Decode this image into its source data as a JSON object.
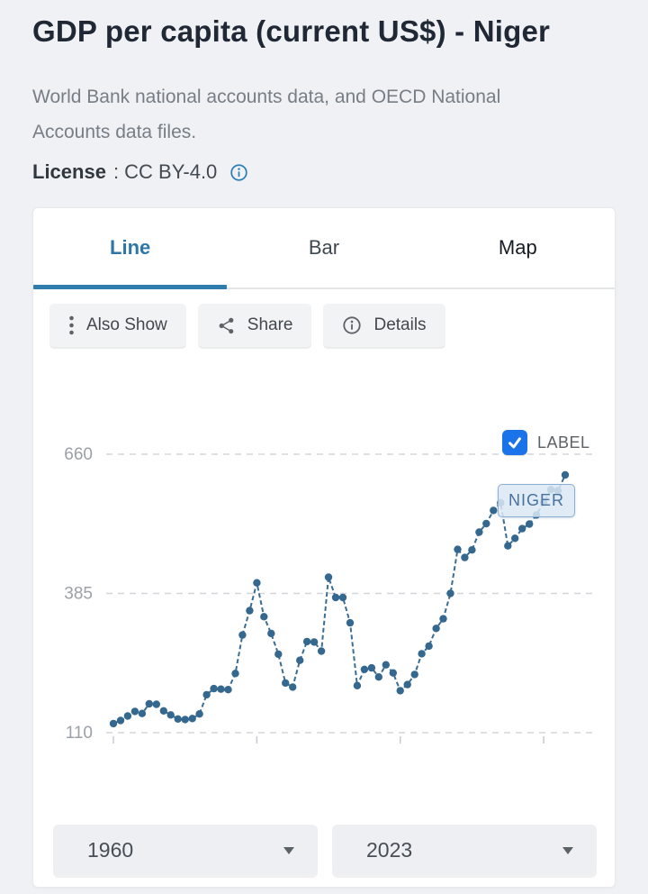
{
  "page": {
    "title": "GDP per capita (current US$) - Niger",
    "source_description": "World Bank national accounts data, and OECD National Accounts data files.",
    "license_label": "License",
    "license_text": ": CC BY-4.0"
  },
  "tabs": [
    {
      "label": "Line",
      "active": true
    },
    {
      "label": "Bar",
      "active": false
    },
    {
      "label": "Map",
      "active": false
    }
  ],
  "toolbar": [
    {
      "label": "Also Show",
      "icon": "kebab-menu-icon"
    },
    {
      "label": "Share",
      "icon": "share-icon"
    },
    {
      "label": "Details",
      "icon": "info-circle-icon"
    }
  ],
  "chart": {
    "legend_checkbox_label": "LABEL",
    "legend_checkbox_checked": true,
    "series_annotation": "NIGER"
  },
  "range_selectors": {
    "start_year": "1960",
    "end_year": "2023"
  },
  "icons": {
    "license": "info-circle-icon",
    "checkbox": "checkmark-icon",
    "dropdowns": "caret-down-icon"
  },
  "colors": {
    "accent_tab": "#2e7dad",
    "line_series": "#3a6d93",
    "dot_series": "#35688f",
    "checkbox_blue": "#1a73e8",
    "gridline": "#d3d6da",
    "page_background": "#eff1f4",
    "annotation_fill": "#dbe8f5",
    "annotation_border": "#8cb0d3"
  },
  "chart_data": {
    "type": "line",
    "title": "GDP per capita (current US$) - Niger",
    "series_name": "Niger",
    "x": [
      1960,
      1961,
      1962,
      1963,
      1964,
      1965,
      1966,
      1967,
      1968,
      1969,
      1970,
      1971,
      1972,
      1973,
      1974,
      1975,
      1976,
      1977,
      1978,
      1979,
      1980,
      1981,
      1982,
      1983,
      1984,
      1985,
      1986,
      1987,
      1988,
      1989,
      1990,
      1991,
      1992,
      1993,
      1994,
      1995,
      1996,
      1997,
      1998,
      1999,
      2000,
      2001,
      2002,
      2003,
      2004,
      2005,
      2006,
      2007,
      2008,
      2009,
      2010,
      2011,
      2012,
      2013,
      2014,
      2015,
      2016,
      2017,
      2018,
      2019,
      2020,
      2021,
      2022,
      2023
    ],
    "values": [
      128,
      134,
      143,
      152,
      148,
      167,
      166,
      153,
      145,
      137,
      136,
      138,
      147,
      185,
      197,
      196,
      195,
      227,
      303,
      351,
      406,
      339,
      306,
      265,
      208,
      200,
      253,
      290,
      289,
      271,
      417,
      377,
      377,
      327,
      203,
      235,
      238,
      220,
      244,
      228,
      193,
      205,
      225,
      266,
      281,
      316,
      335,
      385,
      472,
      456,
      471,
      506,
      523,
      549,
      564,
      479,
      494,
      513,
      522,
      540,
      565,
      590,
      588,
      619
    ],
    "yticks": [
      110,
      385,
      660
    ],
    "xticks": [
      1960,
      1980,
      2000,
      2020
    ],
    "ylim": [
      60,
      700
    ],
    "xlim": [
      1960,
      2023
    ],
    "grid": "dashed-horizontal",
    "marker": "dot",
    "line_style": "dashed",
    "legend_position": "top-right"
  }
}
